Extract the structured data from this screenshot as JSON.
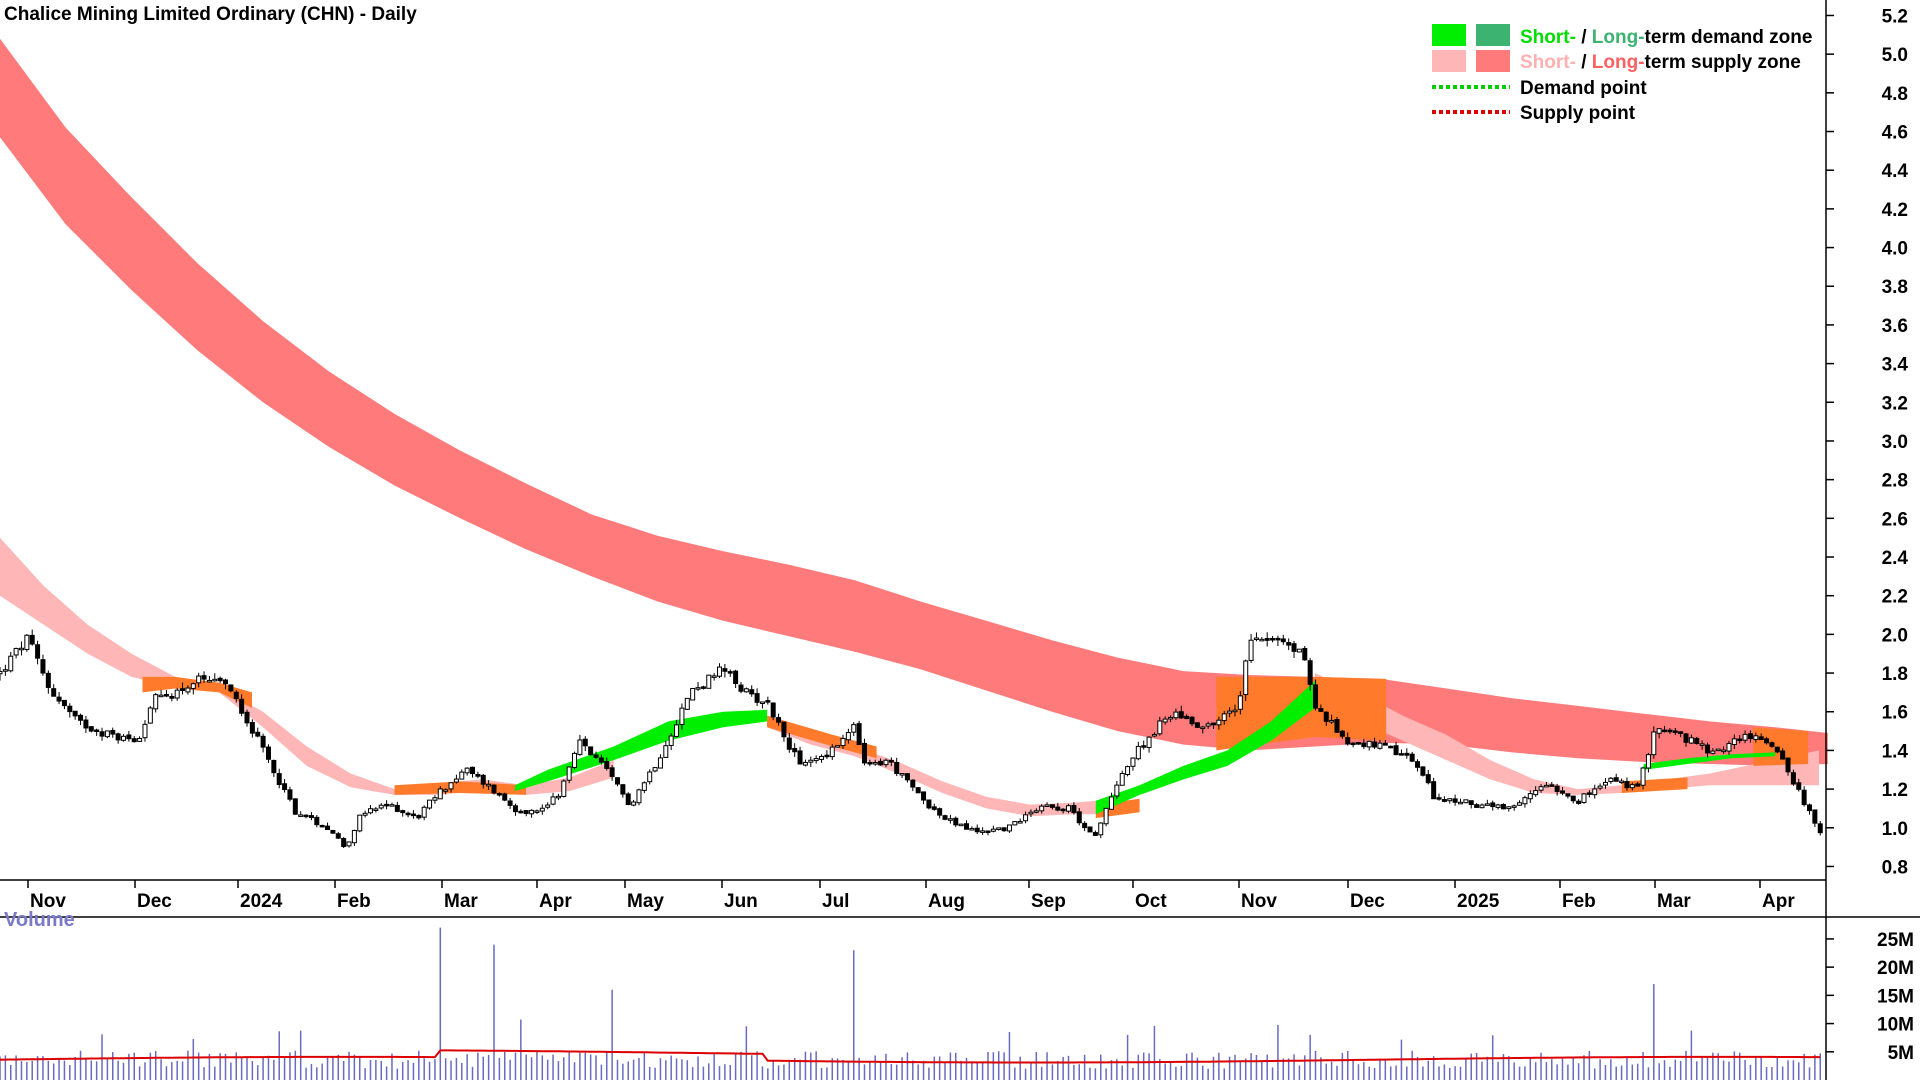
{
  "chart_data": {
    "type": "candlestick",
    "title": "Chalice Mining Limited Ordinary (CHN) - Daily",
    "price_axis": {
      "ticks": [
        "5.2",
        "5.0",
        "4.8",
        "4.6",
        "4.4",
        "4.2",
        "4.0",
        "3.8",
        "3.6",
        "3.4",
        "3.2",
        "3.0",
        "2.8",
        "2.6",
        "2.4",
        "2.2",
        "2.0",
        "1.8",
        "1.6",
        "1.4",
        "1.2",
        "1.0",
        "0.8"
      ],
      "range": [
        0.73,
        5.28
      ]
    },
    "x_axis": {
      "labels": [
        "Nov",
        "Dec",
        "2024",
        "Feb",
        "Mar",
        "Apr",
        "May",
        "Jun",
        "Jul",
        "Aug",
        "Sep",
        "Oct",
        "Nov",
        "Dec",
        "2025",
        "Feb",
        "Mar",
        "Apr"
      ]
    },
    "legend": {
      "row1_short": "Short-",
      "row1_slash": " / ",
      "row1_long": "Long-",
      "row1_rest": "term demand zone",
      "row2_short": "Short-",
      "row2_slash": " / ",
      "row2_long": "Long-",
      "row2_rest": "term supply zone",
      "row3": "Demand point",
      "row4": "Supply point"
    },
    "colors": {
      "short_demand": "#00ee00",
      "long_demand": "#3cb371",
      "short_supply": "#ffb6b6",
      "long_supply": "#ff7b7b",
      "overlap": "#ff7a2a",
      "demand_point": "#00cc00",
      "supply_point": "#dd0000",
      "volume_bar": "#6a6ac0",
      "volume_avg": "#dd0000",
      "short_green_text": "#00dd00",
      "long_green_text": "#3cb371",
      "short_pink_text": "#ffb0b0",
      "long_red_text": "#ff6060"
    },
    "long_term_zone": [
      [
        0,
        4.57,
        5.08
      ],
      [
        60,
        4.12,
        4.62
      ],
      [
        120,
        3.78,
        4.26
      ],
      [
        180,
        3.47,
        3.92
      ],
      [
        240,
        3.2,
        3.62
      ],
      [
        300,
        2.97,
        3.36
      ],
      [
        360,
        2.77,
        3.14
      ],
      [
        420,
        2.6,
        2.95
      ],
      [
        480,
        2.44,
        2.78
      ],
      [
        540,
        2.3,
        2.62
      ],
      [
        600,
        2.17,
        2.51
      ],
      [
        660,
        2.07,
        2.43
      ],
      [
        720,
        1.99,
        2.36
      ],
      [
        780,
        1.91,
        2.28
      ],
      [
        840,
        1.82,
        2.17
      ],
      [
        900,
        1.71,
        2.07
      ],
      [
        960,
        1.6,
        1.97
      ],
      [
        1020,
        1.5,
        1.88
      ],
      [
        1080,
        1.43,
        1.81
      ],
      [
        1140,
        1.4,
        1.79
      ],
      [
        1200,
        1.42,
        1.78
      ],
      [
        1260,
        1.44,
        1.77
      ],
      [
        1320,
        1.43,
        1.72
      ],
      [
        1380,
        1.39,
        1.67
      ],
      [
        1440,
        1.36,
        1.63
      ],
      [
        1500,
        1.34,
        1.59
      ],
      [
        1560,
        1.33,
        1.55
      ],
      [
        1620,
        1.32,
        1.52
      ],
      [
        1668,
        1.33,
        1.49
      ]
    ],
    "short_term_supply": [
      [
        0,
        2.2,
        2.5
      ],
      [
        40,
        2.05,
        2.25
      ],
      [
        80,
        1.9,
        2.05
      ],
      [
        120,
        1.78,
        1.9
      ],
      [
        160,
        1.73,
        1.78
      ],
      [
        200,
        1.7,
        1.72
      ],
      [
        240,
        1.52,
        1.6
      ],
      [
        280,
        1.32,
        1.42
      ],
      [
        320,
        1.21,
        1.28
      ],
      [
        360,
        1.17,
        1.2
      ],
      [
        400,
        1.17,
        1.23
      ],
      [
        440,
        1.2,
        1.25
      ],
      [
        480,
        1.17,
        1.22
      ],
      [
        520,
        1.19,
        1.26
      ],
      [
        560,
        1.26,
        1.35
      ],
      [
        700,
        1.52,
        1.57
      ],
      [
        740,
        1.43,
        1.47
      ],
      [
        780,
        1.37,
        1.42
      ],
      [
        820,
        1.28,
        1.34
      ],
      [
        860,
        1.18,
        1.24
      ],
      [
        900,
        1.1,
        1.16
      ],
      [
        940,
        1.06,
        1.12
      ],
      [
        980,
        1.07,
        1.13
      ],
      [
        1000,
        1.07,
        1.14
      ],
      [
        1200,
        1.62,
        1.8
      ],
      [
        1240,
        1.55,
        1.7
      ],
      [
        1280,
        1.45,
        1.58
      ],
      [
        1320,
        1.35,
        1.48
      ],
      [
        1360,
        1.25,
        1.35
      ],
      [
        1400,
        1.18,
        1.25
      ],
      [
        1440,
        1.17,
        1.2
      ],
      [
        1480,
        1.18,
        1.22
      ],
      [
        1520,
        1.2,
        1.25
      ],
      [
        1560,
        1.22,
        1.28
      ],
      [
        1660,
        1.22,
        1.4
      ]
    ],
    "short_term_demand": [
      [
        470,
        1.19,
        1.22
      ],
      [
        500,
        1.24,
        1.3
      ],
      [
        560,
        1.35,
        1.42
      ],
      [
        610,
        1.45,
        1.55
      ],
      [
        660,
        1.52,
        1.6
      ],
      [
        700,
        1.55,
        1.61
      ],
      [
        1000,
        1.07,
        1.14
      ],
      [
        1040,
        1.17,
        1.22
      ],
      [
        1080,
        1.25,
        1.32
      ],
      [
        1120,
        1.32,
        1.4
      ],
      [
        1160,
        1.45,
        1.55
      ],
      [
        1200,
        1.62,
        1.76
      ],
      [
        1500,
        1.3,
        1.33
      ],
      [
        1540,
        1.33,
        1.36
      ],
      [
        1580,
        1.36,
        1.38
      ],
      [
        1620,
        1.37,
        1.39
      ]
    ],
    "volume": {
      "label": "Volume",
      "ticks": [
        "25M",
        "20M",
        "15M",
        "10M",
        "5M"
      ],
      "range": [
        0,
        28
      ],
      "spikes": [
        [
          400,
          27
        ],
        [
          450,
          24
        ],
        [
          560,
          16
        ],
        [
          780,
          23
        ],
        [
          1030,
          8
        ],
        [
          1195,
          8
        ],
        [
          1510,
          17
        ]
      ]
    },
    "candles_source": "synthetic daily OHLC approximating chart",
    "series": [
      {
        "name": "price",
        "anchors": [
          [
            0,
            1.8
          ],
          [
            25,
            1.98
          ],
          [
            45,
            1.72
          ],
          [
            70,
            1.55
          ],
          [
            100,
            1.48
          ],
          [
            125,
            1.45
          ],
          [
            140,
            1.66
          ],
          [
            160,
            1.7
          ],
          [
            180,
            1.76
          ],
          [
            210,
            1.73
          ],
          [
            240,
            1.4
          ],
          [
            270,
            1.08
          ],
          [
            300,
            1.0
          ],
          [
            315,
            0.9
          ],
          [
            330,
            1.07
          ],
          [
            355,
            1.12
          ],
          [
            380,
            1.05
          ],
          [
            400,
            1.18
          ],
          [
            425,
            1.3
          ],
          [
            445,
            1.22
          ],
          [
            470,
            1.1
          ],
          [
            490,
            1.08
          ],
          [
            510,
            1.18
          ],
          [
            530,
            1.45
          ],
          [
            555,
            1.28
          ],
          [
            575,
            1.12
          ],
          [
            600,
            1.35
          ],
          [
            630,
            1.7
          ],
          [
            660,
            1.82
          ],
          [
            680,
            1.7
          ],
          [
            700,
            1.65
          ],
          [
            730,
            1.32
          ],
          [
            760,
            1.4
          ],
          [
            780,
            1.52
          ],
          [
            790,
            1.31
          ],
          [
            810,
            1.35
          ],
          [
            830,
            1.22
          ],
          [
            860,
            1.05
          ],
          [
            890,
            0.98
          ],
          [
            920,
            1.0
          ],
          [
            950,
            1.12
          ],
          [
            975,
            1.1
          ],
          [
            1000,
            0.95
          ],
          [
            1020,
            1.25
          ],
          [
            1045,
            1.45
          ],
          [
            1070,
            1.6
          ],
          [
            1100,
            1.52
          ],
          [
            1130,
            1.62
          ],
          [
            1140,
            2.0
          ],
          [
            1160,
            1.98
          ],
          [
            1190,
            1.9
          ],
          [
            1200,
            1.62
          ],
          [
            1230,
            1.45
          ],
          [
            1260,
            1.42
          ],
          [
            1290,
            1.35
          ],
          [
            1310,
            1.15
          ],
          [
            1350,
            1.12
          ],
          [
            1380,
            1.09
          ],
          [
            1410,
            1.24
          ],
          [
            1440,
            1.14
          ],
          [
            1470,
            1.25
          ],
          [
            1495,
            1.2
          ],
          [
            1510,
            1.52
          ],
          [
            1535,
            1.47
          ],
          [
            1565,
            1.38
          ],
          [
            1590,
            1.48
          ],
          [
            1620,
            1.43
          ],
          [
            1645,
            1.15
          ],
          [
            1665,
            0.92
          ]
        ]
      }
    ]
  }
}
